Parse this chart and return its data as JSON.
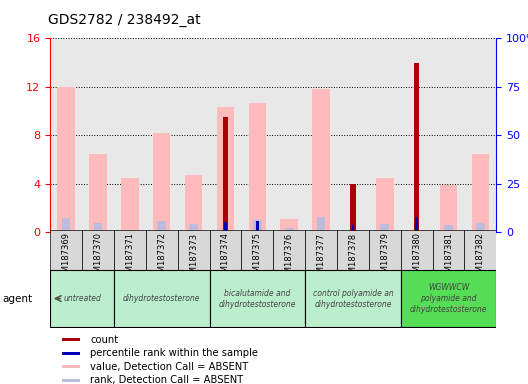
{
  "title": "GDS2782 / 238492_at",
  "samples": [
    "GSM187369",
    "GSM187370",
    "GSM187371",
    "GSM187372",
    "GSM187373",
    "GSM187374",
    "GSM187375",
    "GSM187376",
    "GSM187377",
    "GSM187378",
    "GSM187379",
    "GSM187380",
    "GSM187381",
    "GSM187382"
  ],
  "count_values": [
    0,
    0,
    0,
    0,
    0,
    9.5,
    0,
    0,
    0,
    4.0,
    0,
    14.0,
    0,
    0
  ],
  "rank_values": [
    0,
    0,
    0,
    0,
    0,
    5.1,
    5.6,
    0,
    0,
    4.0,
    0,
    8.0,
    0,
    0
  ],
  "absent_value_values": [
    12.0,
    6.5,
    4.5,
    8.2,
    4.7,
    10.3,
    10.7,
    1.1,
    11.8,
    0,
    4.5,
    0,
    3.9,
    6.5
  ],
  "absent_rank_values": [
    7.2,
    4.8,
    0,
    6.0,
    4.5,
    0,
    6.3,
    2.2,
    7.8,
    0,
    4.3,
    0,
    3.8,
    4.8
  ],
  "agent_groups": [
    {
      "label": "untreated",
      "start": 0,
      "end": 2,
      "color": "#bbeecc"
    },
    {
      "label": "dihydrotestosterone",
      "start": 2,
      "end": 5,
      "color": "#bbeecc"
    },
    {
      "label": "bicalutamide and\ndihydrotestosterone",
      "start": 5,
      "end": 8,
      "color": "#bbeecc"
    },
    {
      "label": "control polyamide an\ndihydrotestosterone",
      "start": 8,
      "end": 11,
      "color": "#bbeecc"
    },
    {
      "label": "WGWWCW\npolyamide and\ndihydrotestosterone",
      "start": 11,
      "end": 14,
      "color": "#44cc44"
    }
  ],
  "ylim_left": [
    0,
    16
  ],
  "ylim_right": [
    0,
    100
  ],
  "yticks_left": [
    0,
    4,
    8,
    12,
    16
  ],
  "yticks_right": [
    0,
    25,
    50,
    75,
    100
  ],
  "ytick_labels_right": [
    "0",
    "25",
    "50",
    "75",
    "100%"
  ],
  "color_count": "#aa0000",
  "color_rank": "#0000bb",
  "color_absent_value": "#ffbbbb",
  "color_absent_rank": "#bbbbdd",
  "bar_width": 0.55,
  "background_plot": "#e8e8e8",
  "background_xticklabel": "#d8d8d8"
}
